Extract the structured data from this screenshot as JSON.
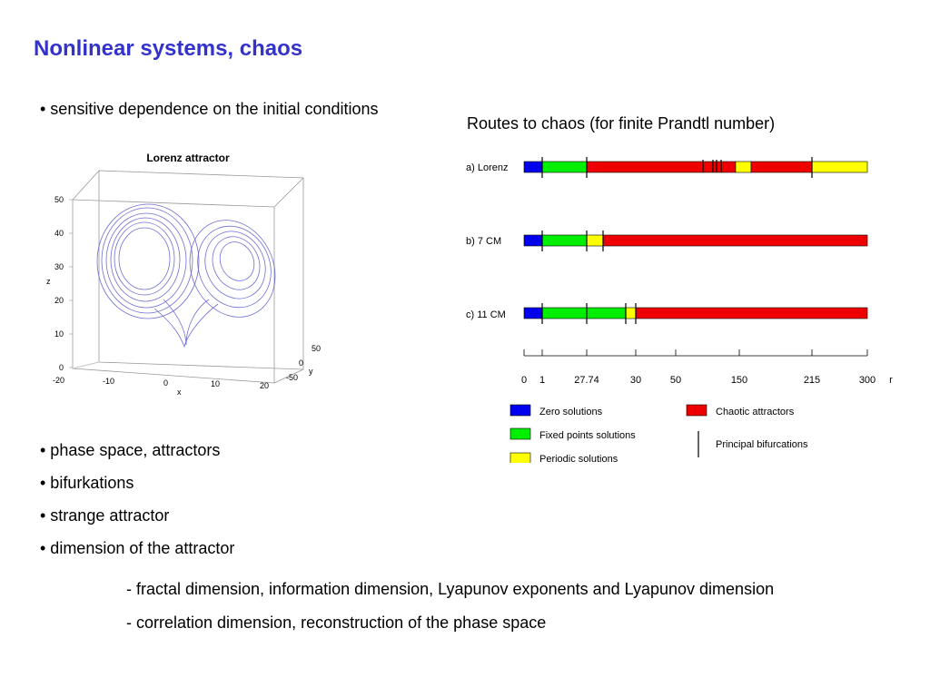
{
  "slide": {
    "title": "Nonlinear systems, chaos",
    "bullets_top": [
      "• sensitive dependence on the initial conditions"
    ],
    "bullets": [
      "• phase space, attractors",
      "• bifurkations",
      "• strange attractor",
      "• dimension of the attractor"
    ],
    "subpoints": [
      "- fractal dimension, information dimension, Lyapunov exponents and Lyapunov dimension",
      "- correlation dimension, reconstruction of the phase space"
    ]
  },
  "lorenz": {
    "title": "Lorenz attractor",
    "z_label": "z",
    "x_label": "x",
    "y_label": "y",
    "z_ticks": [
      "50",
      "40",
      "30",
      "20",
      "10",
      "0"
    ],
    "x_ticks": [
      "-20",
      "-10",
      "0",
      "10",
      "20"
    ],
    "y_ticks": [
      "50",
      "0",
      "-50"
    ],
    "line_color": "#5555cc"
  },
  "routes": {
    "title": "Routes to chaos (for finite Prandtl number)",
    "rows": [
      {
        "label": "a)  Lorenz"
      },
      {
        "label": "b)  7 CM"
      },
      {
        "label": "c)  11 CM"
      }
    ],
    "axis_ticks": [
      "0",
      "1",
      "27.74",
      "30",
      "50",
      "150",
      "215",
      "300"
    ],
    "axis_unit": "r",
    "legend": {
      "zero": "Zero solutions",
      "fixed": "Fixed points solutions",
      "periodic": "Periodic solutions",
      "chaotic": "Chaotic attractors",
      "bifurcation": "Principal bifurcations"
    },
    "colors": {
      "zero": "#0000ee",
      "fixed": "#00ee00",
      "periodic": "#ffff00",
      "chaotic": "#ee0000"
    }
  }
}
